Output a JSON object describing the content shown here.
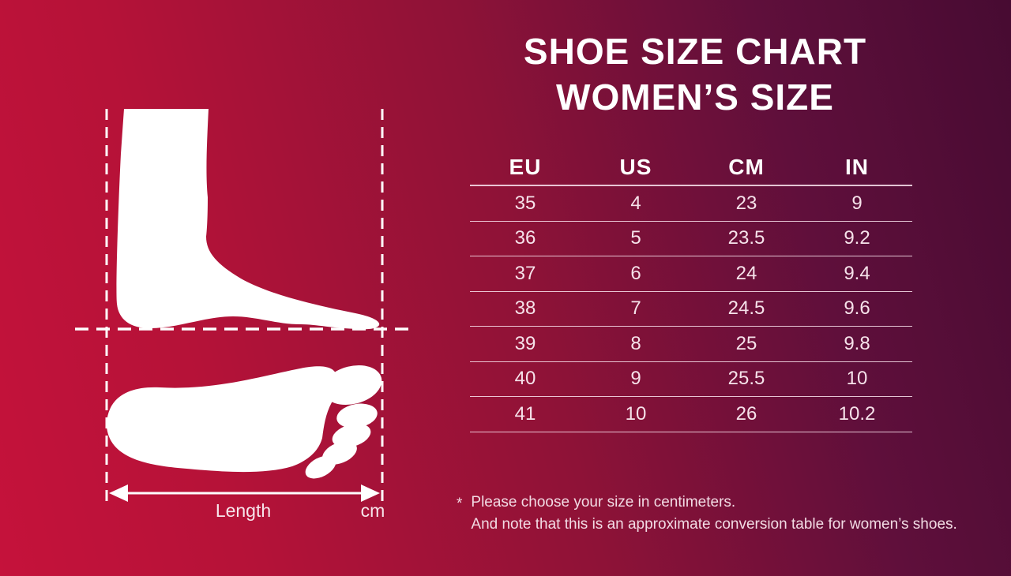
{
  "title": {
    "line1": "SHOE SIZE CHART",
    "line2": "WOMEN’S SIZE"
  },
  "size_table": {
    "headers": [
      "EU",
      "US",
      "CM",
      "IN"
    ],
    "rows": [
      [
        "35",
        "4",
        "23",
        "9"
      ],
      [
        "36",
        "5",
        "23.5",
        "9.2"
      ],
      [
        "37",
        "6",
        "24",
        "9.4"
      ],
      [
        "38",
        "7",
        "24.5",
        "9.6"
      ],
      [
        "39",
        "8",
        "25",
        "9.8"
      ],
      [
        "40",
        "9",
        "25.5",
        "10"
      ],
      [
        "41",
        "10",
        "26",
        "10.2"
      ]
    ]
  },
  "chart_data": {
    "type": "table",
    "title": "SHOE SIZE CHART WOMEN’S SIZE",
    "columns": [
      "EU",
      "US",
      "CM",
      "IN"
    ],
    "rows": [
      [
        35,
        4,
        23,
        9
      ],
      [
        36,
        5,
        23.5,
        9.2
      ],
      [
        37,
        6,
        24,
        9.4
      ],
      [
        38,
        7,
        24.5,
        9.6
      ],
      [
        39,
        8,
        25,
        9.8
      ],
      [
        40,
        9,
        25.5,
        10
      ],
      [
        41,
        10,
        26,
        10.2
      ]
    ]
  },
  "notes": {
    "marker": "*",
    "line1": "Please choose your size in centimeters.",
    "line2": "And note that this is an approximate conversion table for women’s shoes."
  },
  "diagram": {
    "length_label": "Length",
    "unit_label": "cm"
  },
  "colors": {
    "bg-bright": "#c5123b",
    "bg-dark": "#470b32",
    "foot": "#ffffff",
    "line": "rgba(250,228,238,0.85)"
  }
}
